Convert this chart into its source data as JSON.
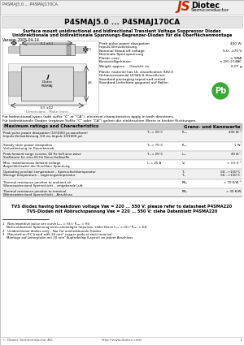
{
  "title_model": "P4SMAJ5.0 ... P4SMAJ170CA",
  "header_small": "P4SMAJ5.0 ... P4SMAJ170CA",
  "subtitle1": "Surface mount unidirectional and bidirectional Transient Voltage Suppressor Diodes",
  "subtitle2": "Unidirektionale und bidirektionale Spannungs-Begrenzer-Dioden für die Oberflächenmontage",
  "version": "Version 2005-04-14",
  "spec_left": [
    "Peak pulse power dissipation\nImpuls-Verlustleistung",
    "Nominal Stand-off voltage\nNominale Sperrspannung",
    "Plastic case\nKunststoffgehäuse",
    "Weight approx. – Gewicht ca.",
    "Plastic material has UL classification 94V-0\nGehäusematerial UL94V-0 klassifiziert",
    "Standard packaging taped and reeled\nStandard Lieferform gegurtet auf Rollen"
  ],
  "spec_right": [
    "400 W",
    "5.0...170 V",
    "≈ SMA\n≈ DO-214AC",
    "0.07 g",
    "",
    ""
  ],
  "table_header_left": "Maximum ratings and Characteristics",
  "table_header_right": "Grenz- und Kennwerte",
  "row_descs": [
    "Peak pulse power dissipation (10/1000 μs waveform)\nImpuls-Verlustleistung (10 ms-Impuls 10/1000 μs)",
    "Steady state power dissipation -\nVerlustleistung im Dauerbetrieb",
    "Peak forward surge current, 60 Hz half sine-wave\nStoßstrom für eine 60 Hz Sinus-Halbwelle",
    "Max. instantaneous forward voltage\nAugenblickswert der Durchlass-Spannung",
    "Operating junction temperature – Sperrschichttemperatur\nStorage temperature – Lagerungstemperatur",
    "Thermal resistance junction to ambient air\nWärmewiderstand Sperrschicht – umgebende Luft",
    "Thermal resistance junction to terminal\nWärmewiderstand Sperrschicht – Anschluss"
  ],
  "row_conds": [
    "T₆ = 25°C",
    "T₆ = 75°C",
    "T₆ = 25°C",
    "I₆ = 25 A",
    "",
    "",
    ""
  ],
  "row_syms": [
    "Pₚₑₖ",
    "Pₚₑₖ",
    "Iₚₑₖ",
    "V₆",
    "Tⱼ\nTₛ",
    "Rθⱼₐ",
    "Rθⱼₐ"
  ],
  "row_vals": [
    "400 W ¹",
    "1 W",
    "40 A ²",
    "< 3.5 V ³",
    "-50...+150°C\n-50...+150°C",
    "< 70 K/W ³",
    "< 30 K/W"
  ],
  "footer_line1": "TVS diodes having breakdown voltage Vʙʀ = 220 ... 550 V: please refer to datasheet P4SMA220",
  "footer_line2": "TVS-Dioden mit Abbruchspannung Vʙʀ = 220 ... 550 V: siehe Datenblatt P4SMA220",
  "fn1a": "1   Non-repetitive pulse see curve Iₚₑₖ = f(t) / Pₚₑₖ = f(t)",
  "fn1b": "    Nicht-reduzierte Spannung eines einmaligen Impulses, siehe Kurve Iₚₑₖ = f(t) / Pₚₑₖ = f(t)",
  "fn2": "2   Unidirectional diodes only – Nur für unidirektionale Diodes",
  "fn3a": "3   Mounted on P.C board with 20 mm² copper pads at each terminal",
  "fn3b": "    Montage auf Leiterplatte mit 20 mm² Kupferbelag (Layout) an jedem Anschluss",
  "bidi1": "For bidirectional types (add suffix \"C\" or \"CA\"), electrical characteristics apply in both directions.",
  "bidi2": "Für bidirektionale Dioden (ergänze Suffix \"C\" oder \"CA\") gelten die elektrischen Werte in beiden Richtungen.",
  "copyright": "© Diotec Semiconductor AG",
  "website": "http://www.diotec.com/",
  "page_num": "1",
  "bg_color": "#ffffff",
  "logo_red": "#cc2200",
  "header_bg": "#eeeeee",
  "title_bg": "#e4e4e4",
  "table_hdr_bg": "#c8c8c8",
  "row_alt_bg": "#f0f0f0",
  "watermark_color": "#d8d8d8",
  "pb_green": "#3aaa35"
}
